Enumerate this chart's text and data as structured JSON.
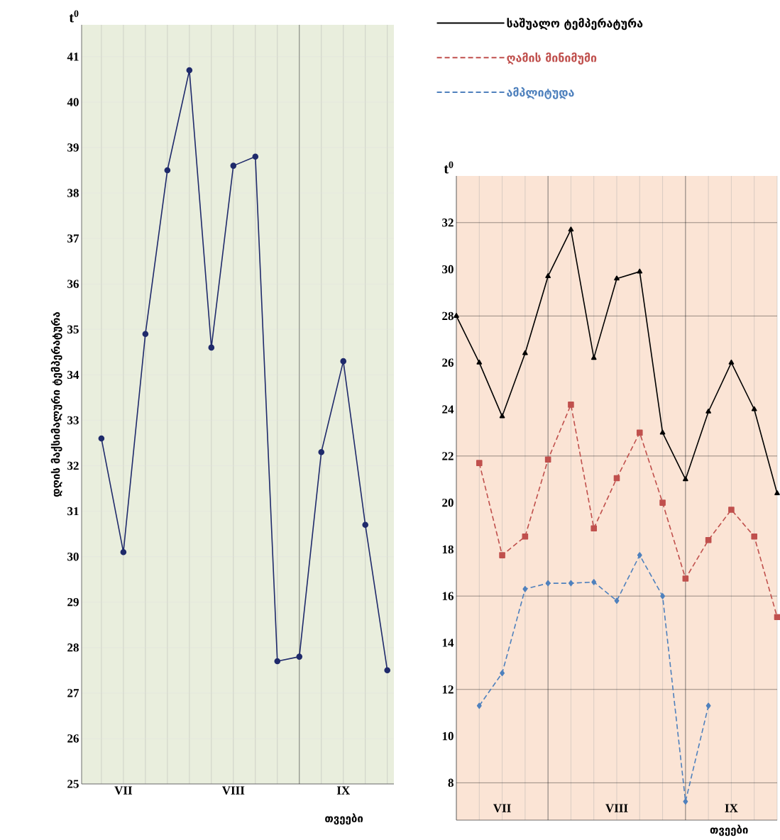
{
  "chart_data": [
    {
      "type": "line",
      "ylabel": "დღის მაქსიმალური ტემპერატურა",
      "xlabel": "თვეები",
      "annotations": [
        "t$^{0}$"
      ],
      "categories": [
        null,
        "VII",
        null,
        null,
        null,
        null,
        "VIII",
        null,
        null,
        null,
        null,
        "IX",
        null,
        null
      ],
      "values": [
        32.6,
        30.1,
        34.9,
        38.5,
        40.7,
        34.6,
        38.6,
        38.8,
        27.7,
        27.8,
        32.3,
        34.3,
        30.7,
        27.5
      ],
      "color": "#1f2a6b",
      "marker": "circle",
      "ylim": [
        25,
        41.7
      ],
      "yticks": [
        25,
        26,
        27,
        28,
        29,
        30,
        31,
        32,
        33,
        34,
        35,
        36,
        37,
        38,
        39,
        40,
        41
      ],
      "grid": true
    },
    {
      "type": "line",
      "xlabel": "თვეები",
      "annotations": [
        "t$^{0}$"
      ],
      "categories": [
        null,
        null,
        "VII",
        null,
        null,
        null,
        null,
        "VIII",
        null,
        null,
        null,
        null,
        "IX",
        null,
        null
      ],
      "series": [
        {
          "name": "საშუალო ტემპერატურა",
          "color": "#000000",
          "marker": "triangle",
          "line_style": "solid",
          "values": [
            28.0,
            26.0,
            23.7,
            26.4,
            29.7,
            31.7,
            26.2,
            29.6,
            29.9,
            23.0,
            21.0,
            23.9,
            26.0,
            24.0,
            20.4
          ]
        },
        {
          "name": "ღამის მინიმუმი",
          "color": "#c0504d",
          "marker": "square",
          "line_style": "dashed",
          "values": [
            null,
            21.7,
            17.75,
            18.55,
            21.85,
            24.2,
            18.9,
            21.05,
            23.0,
            20.0,
            16.75,
            18.4,
            19.7,
            18.55,
            15.1
          ]
        },
        {
          "name": "ამპლიტუდა",
          "color": "#4f81bd",
          "marker": "diamond",
          "line_style": "dashed",
          "values": [
            null,
            11.3,
            12.7,
            16.3,
            16.55,
            16.55,
            16.6,
            15.8,
            17.75,
            16.0,
            7.2,
            11.3,
            null,
            null,
            null
          ]
        }
      ],
      "ylim": [
        6.4,
        34
      ],
      "yticks": [
        8,
        10,
        12,
        14,
        16,
        18,
        20,
        22,
        24,
        26,
        28,
        30,
        32
      ],
      "grid": "x",
      "legend": "top",
      "ref_lines": [
        {
          "axis": "y",
          "value": 8
        },
        {
          "axis": "y",
          "value": 12
        },
        {
          "axis": "y",
          "value": 16
        },
        {
          "axis": "y",
          "value": 22
        },
        {
          "axis": "y",
          "value": 28
        },
        {
          "axis": "y",
          "value": 32
        }
      ]
    }
  ]
}
